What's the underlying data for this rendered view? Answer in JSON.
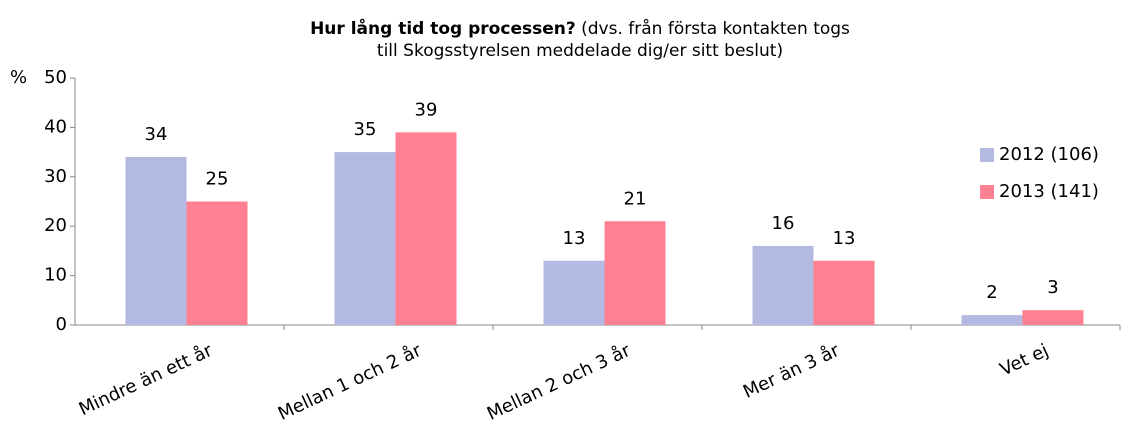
{
  "chart_data": {
    "type": "bar",
    "title": "Hur lång tid tog processen?",
    "subtitle": "(dvs. från första kontakten togs till Skogsstyrelsen meddelade dig/er sitt beslut)",
    "y_label": "%",
    "categories": [
      "Mindre än ett år",
      "Mellan 1 och 2 år",
      "Mellan 2 och 3 år",
      "Mer än 3 år",
      "Vet ej"
    ],
    "series": [
      {
        "name": "2012 (106)",
        "color": "#b3b9e0",
        "values": [
          34,
          35,
          13,
          16,
          2
        ]
      },
      {
        "name": "2013 (141)",
        "color": "#ff8090",
        "values": [
          25,
          39,
          21,
          13,
          3
        ]
      }
    ],
    "ylim": [
      0,
      50
    ],
    "yticks": [
      0,
      10,
      20,
      30,
      40,
      50
    ],
    "legend": "right"
  }
}
